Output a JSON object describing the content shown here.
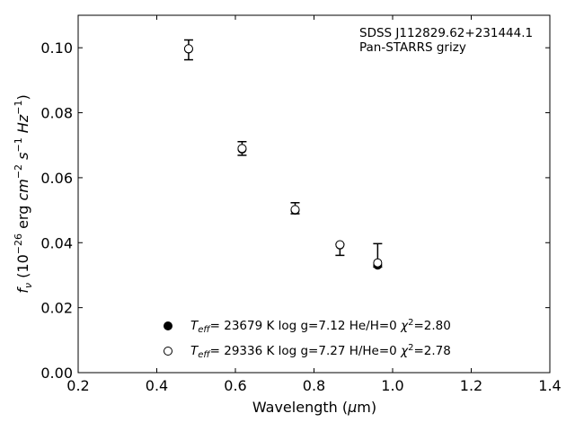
{
  "chart_data": {
    "type": "scatter",
    "xlabel": "Wavelength (μm)",
    "ylabel": "fν (10⁻²⁶ erg cm⁻² s⁻¹ Hz⁻¹)",
    "xlim": [
      0.2,
      1.4
    ],
    "ylim": [
      0.0,
      0.11
    ],
    "x_ticks": [
      "0.2",
      "0.4",
      "0.6",
      "0.8",
      "1.0",
      "1.2",
      "1.4"
    ],
    "y_ticks": [
      "0.00",
      "0.02",
      "0.04",
      "0.06",
      "0.08",
      "0.10"
    ],
    "x_tick_values": [
      0.2,
      0.4,
      0.6,
      0.8,
      1.0,
      1.2,
      1.4
    ],
    "y_tick_values": [
      0.0,
      0.02,
      0.04,
      0.06,
      0.08,
      0.1
    ],
    "grid": false,
    "annotation": {
      "line1": "SDSS J112829.62+231444.1",
      "line2": "Pan-STARRS grizy"
    },
    "observed": {
      "x": [
        0.481,
        0.617,
        0.752,
        0.866,
        0.962
      ],
      "y": [
        0.0996,
        0.0688,
        0.0502,
        0.0392,
        0.0336
      ],
      "err_low": [
        0.0033,
        0.0019,
        0.0013,
        0.0031,
        0.0011
      ],
      "err_high": [
        0.0028,
        0.0023,
        0.0021,
        0.0004,
        0.0061
      ]
    },
    "series": [
      {
        "label": "Teff= 23679 K  log g=7.12  He/H=0  χ²=2.80",
        "marker": "filled-circle",
        "x": [
          0.481,
          0.617,
          0.752,
          0.866,
          0.962
        ],
        "y": [
          0.0996,
          0.0688,
          0.05,
          0.0393,
          0.0331
        ]
      },
      {
        "label": "Teff= 29336 K  log g=7.27  H/He=0  χ²=2.78",
        "marker": "open-circle",
        "x": [
          0.481,
          0.617,
          0.752,
          0.866,
          0.962
        ],
        "y": [
          0.0997,
          0.069,
          0.0502,
          0.0394,
          0.0338
        ]
      }
    ],
    "legend_placement": "bottom-center"
  }
}
